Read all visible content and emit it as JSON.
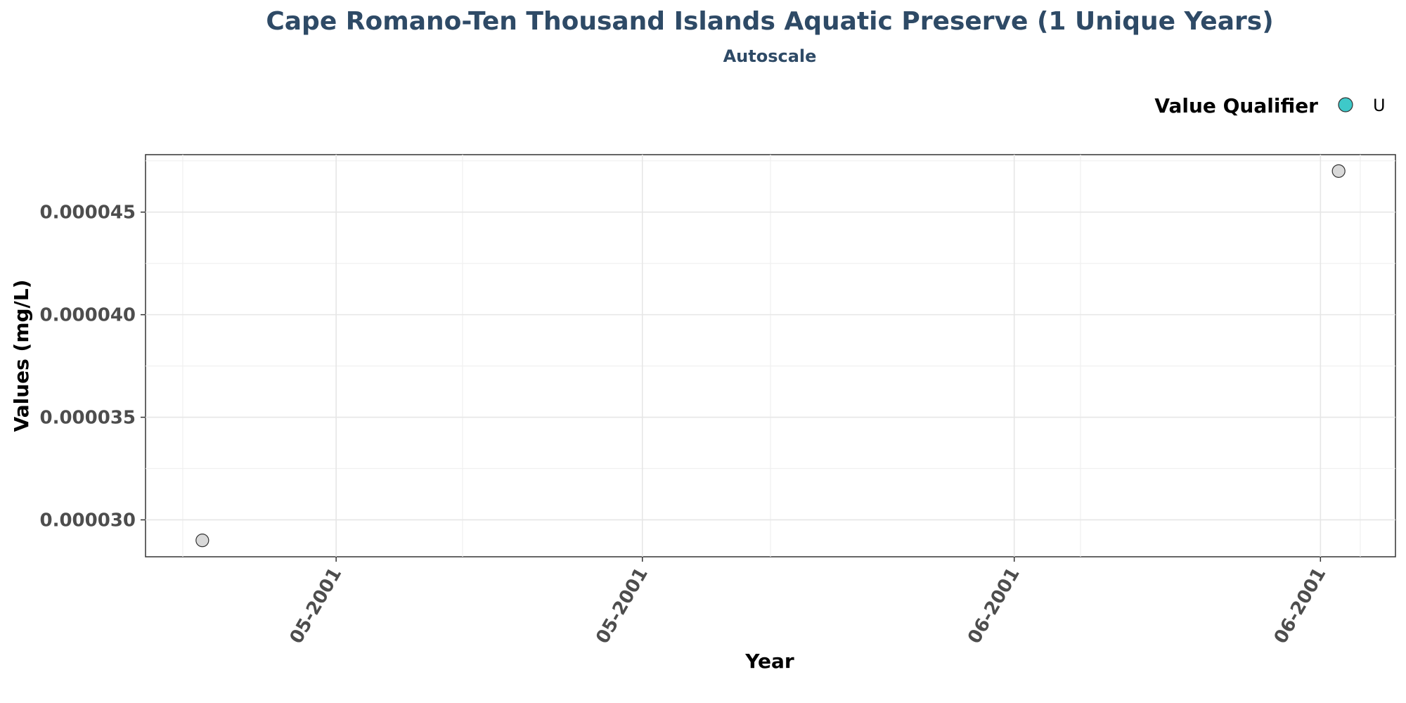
{
  "chart_data": {
    "type": "scatter",
    "title": "Cape Romano-Ten Thousand Islands Aquatic Preserve (1 Unique Years)",
    "subtitle": "Autoscale",
    "xlabel": "Year",
    "ylabel": "Values (mg/L)",
    "x_tick_labels": [
      "05-2001",
      "05-2001",
      "06-2001",
      "06-2001"
    ],
    "y_tick_labels": [
      "0.000030",
      "0.000035",
      "0.000040",
      "0.000045"
    ],
    "y_ticks": [
      3e-05,
      3.5e-05,
      4e-05,
      4.5e-05
    ],
    "ylim": [
      2.82e-05,
      4.78e-05
    ],
    "grid": true,
    "legend": {
      "title": "Value Qualifier",
      "placement": "top-right",
      "entries": [
        {
          "label": "U",
          "color": "#3ec9c9"
        }
      ]
    },
    "points": [
      {
        "x": "2001-04-26",
        "y": 2.9e-05,
        "color": "#d9d9d9"
      },
      {
        "x": "2001-06-26",
        "y": 4.7e-05,
        "color": "#d9d9d9"
      }
    ]
  }
}
